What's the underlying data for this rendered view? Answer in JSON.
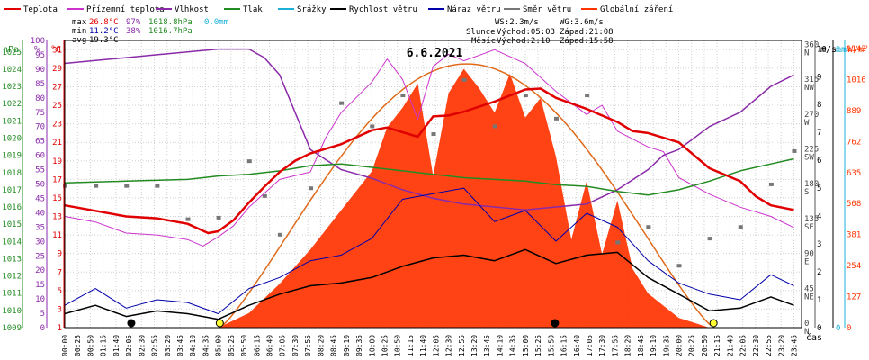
{
  "legend": [
    {
      "label": "Teplota",
      "color": "#e00000"
    },
    {
      "label": "Přízemní teplota",
      "color": "#cc33cc"
    },
    {
      "label": "Vlhkost",
      "color": "#8a2aa8"
    },
    {
      "label": "Tlak",
      "color": "#228b22"
    },
    {
      "label": "Srážky",
      "color": "#1ab0d8"
    },
    {
      "label": "Rychlost větru",
      "color": "#000000"
    },
    {
      "label": "Náraz větru",
      "color": "#0000aa"
    },
    {
      "label": "Směr větru",
      "color": "#777777"
    },
    {
      "label": "Globální záření",
      "color": "#ff3300"
    }
  ],
  "stats": {
    "max": {
      "label": "max",
      "temp": "26.8°C",
      "hum": "97%",
      "press": "1018.8hPa",
      "rain": "0.0mm"
    },
    "min": {
      "label": "min",
      "temp": "11.2°C",
      "hum": "38%",
      "press": "1016.7hPa"
    },
    "avg": {
      "label": "avg",
      "temp": "19.3°C"
    }
  },
  "wind_info": {
    "ws": "WS:2.3m/s",
    "wg": "WG:3.6m/s"
  },
  "sun_moon": {
    "sun_label": "Slunce",
    "sun_rise": "Východ:05:03",
    "sun_set": "Západ:21:08",
    "moon_label": "Měsíc",
    "moon_rise": "Východ:2:10",
    "moon_set": "Západ:15:58"
  },
  "axis_units": {
    "hpa": "hPa",
    "pct": "%",
    "degc": "°C",
    "ms": "m/s",
    "mm": "mm",
    "wm2": "W/m²",
    "time": "čas"
  },
  "colors": {
    "temp": "#e00000",
    "ground": "#cc33cc",
    "hum": "#8a2aa8",
    "press": "#228b22",
    "rain": "#1ab0d8",
    "wind": "#000000",
    "gust": "#0000aa",
    "dir": "#777777",
    "rad": "#ff3300",
    "rad_curve": "#e06a1a",
    "grid": "#d0d0d0"
  },
  "chart_data": {
    "type": "line",
    "title": "6.6.2021",
    "xlabel": "čas",
    "x_ticks": [
      "00:00",
      "00:25",
      "00:50",
      "01:15",
      "01:40",
      "02:05",
      "02:30",
      "02:55",
      "03:20",
      "03:45",
      "04:10",
      "04:35",
      "05:00",
      "05:25",
      "05:50",
      "06:15",
      "06:40",
      "07:05",
      "07:30",
      "07:55",
      "08:20",
      "08:45",
      "09:10",
      "09:35",
      "10:00",
      "10:25",
      "10:50",
      "11:15",
      "11:40",
      "12:05",
      "12:30",
      "12:55",
      "13:20",
      "13:45",
      "14:10",
      "14:35",
      "15:00",
      "15:25",
      "15:50",
      "16:15",
      "16:40",
      "17:05",
      "17:30",
      "17:55",
      "18:20",
      "18:45",
      "19:10",
      "19:35",
      "20:00",
      "20:25",
      "20:50",
      "21:15",
      "21:40",
      "22:05",
      "22:30",
      "22:55",
      "23:20",
      "23:45"
    ],
    "axes": {
      "pressure_hpa": {
        "range": [
          1009,
          1025.67
        ],
        "ticks": [
          1009,
          1010,
          1011,
          1012,
          1013,
          1014,
          1015,
          1016,
          1017,
          1018,
          1019,
          1020,
          1021,
          1022,
          1023,
          1024,
          1025
        ]
      },
      "humidity_pct": {
        "range": [
          0,
          100
        ],
        "ticks": [
          0,
          5,
          10,
          15,
          20,
          25,
          30,
          35,
          40,
          45,
          50,
          55,
          60,
          65,
          70,
          75,
          80,
          85,
          90,
          95,
          100
        ]
      },
      "temperature_c": {
        "range": [
          1,
          32
        ],
        "ticks": [
          1,
          3,
          5,
          7,
          9,
          11,
          13,
          15,
          17,
          19,
          21,
          23,
          25,
          27,
          29,
          31
        ]
      },
      "wind_direction": {
        "range": [
          0,
          371
        ],
        "ticks": [
          0,
          45,
          90,
          135,
          180,
          225,
          270,
          315,
          360
        ],
        "labels": [
          "N",
          "NE",
          "E",
          "SE",
          "S",
          "SW",
          "W",
          "NW",
          "N"
        ]
      },
      "wind_ms": {
        "range": [
          0,
          10.3
        ],
        "ticks": [
          0,
          1,
          2,
          3,
          4,
          5,
          6,
          7,
          8,
          9,
          10
        ]
      },
      "rain_mm": {
        "range": [
          0,
          1.03
        ],
        "ticks": [
          0,
          1
        ]
      },
      "radiation_wm2": {
        "range": [
          0,
          1176
        ],
        "ticks": [
          0,
          127,
          254,
          381,
          508,
          635,
          762,
          889,
          1016,
          1143
        ]
      }
    },
    "series": [
      {
        "name": "Teplota",
        "unit": "°C",
        "x": [
          "00:00",
          "01:00",
          "02:00",
          "03:00",
          "04:00",
          "04:40",
          "05:00",
          "05:30",
          "06:00",
          "06:30",
          "07:00",
          "07:30",
          "08:00",
          "09:00",
          "10:00",
          "10:30",
          "11:00",
          "11:30",
          "12:00",
          "12:30",
          "13:00",
          "14:00",
          "15:00",
          "15:30",
          "16:00",
          "17:00",
          "18:00",
          "18:30",
          "19:00",
          "20:00",
          "21:00",
          "22:00",
          "22:30",
          "23:00",
          "23:45"
        ],
        "y": [
          14.2,
          13.6,
          13.0,
          12.8,
          12.2,
          11.2,
          11.4,
          12.6,
          14.5,
          16.2,
          17.8,
          19.0,
          19.8,
          20.8,
          22.3,
          22.6,
          22.1,
          21.6,
          23.8,
          23.9,
          24.3,
          25.4,
          26.7,
          26.8,
          25.8,
          24.6,
          23.2,
          22.2,
          22.0,
          21.0,
          18.2,
          16.8,
          15.2,
          14.2,
          13.7
        ]
      },
      {
        "name": "Přízemní teplota",
        "unit": "°C",
        "x": [
          "00:00",
          "01:00",
          "02:00",
          "03:00",
          "04:00",
          "04:30",
          "05:00",
          "05:30",
          "06:00",
          "07:00",
          "08:00",
          "08:30",
          "09:00",
          "10:00",
          "10:30",
          "11:00",
          "11:30",
          "12:00",
          "12:30",
          "13:00",
          "14:00",
          "15:00",
          "16:00",
          "17:00",
          "17:30",
          "18:00",
          "19:00",
          "19:30",
          "20:00",
          "21:00",
          "22:00",
          "23:00",
          "23:45"
        ],
        "y": [
          13.0,
          12.4,
          11.2,
          11.0,
          10.5,
          9.8,
          10.8,
          12.0,
          14.0,
          17.0,
          17.8,
          21.5,
          24.2,
          27.5,
          30.0,
          27.8,
          23.5,
          29.2,
          30.5,
          29.8,
          31.0,
          29.5,
          26.5,
          24.0,
          25.0,
          22.2,
          20.5,
          20.0,
          17.2,
          15.4,
          14.0,
          13.0,
          11.8
        ]
      },
      {
        "name": "Vlhkost",
        "unit": "%",
        "x": [
          "00:00",
          "01:00",
          "02:00",
          "03:00",
          "04:00",
          "05:00",
          "05:30",
          "06:00",
          "06:30",
          "07:00",
          "08:00",
          "09:00",
          "10:00",
          "11:00",
          "12:00",
          "13:00",
          "14:00",
          "15:00",
          "16:00",
          "17:00",
          "18:00",
          "19:00",
          "19:30",
          "20:00",
          "21:00",
          "22:00",
          "23:00",
          "23:45"
        ],
        "y": [
          92,
          93,
          94,
          95,
          96,
          97,
          97,
          97,
          94,
          88,
          62,
          55,
          52,
          48,
          45,
          43,
          42,
          41,
          42,
          43,
          48,
          55,
          60,
          62,
          70,
          75,
          84,
          88
        ]
      },
      {
        "name": "Tlak",
        "unit": "hPa",
        "x": [
          "00:00",
          "02:00",
          "04:00",
          "05:00",
          "06:00",
          "07:00",
          "08:00",
          "09:00",
          "10:00",
          "11:00",
          "12:00",
          "13:00",
          "14:00",
          "15:00",
          "16:00",
          "17:00",
          "18:00",
          "19:00",
          "20:00",
          "21:00",
          "22:00",
          "23:00",
          "23:45"
        ],
        "y": [
          1017.4,
          1017.5,
          1017.6,
          1017.8,
          1017.9,
          1018.1,
          1018.4,
          1018.5,
          1018.3,
          1018.1,
          1017.9,
          1017.7,
          1017.6,
          1017.5,
          1017.3,
          1017.2,
          1016.9,
          1016.7,
          1017.0,
          1017.5,
          1018.1,
          1018.5,
          1018.8
        ]
      },
      {
        "name": "Srážky",
        "unit": "mm",
        "x": [
          "00:00",
          "23:45"
        ],
        "y": [
          0.0,
          0.0
        ]
      },
      {
        "name": "Rychlost větru",
        "unit": "m/s",
        "x": [
          "00:00",
          "01:00",
          "02:00",
          "03:00",
          "04:00",
          "05:00",
          "06:00",
          "07:00",
          "08:00",
          "09:00",
          "10:00",
          "11:00",
          "12:00",
          "13:00",
          "14:00",
          "15:00",
          "16:00",
          "17:00",
          "18:00",
          "19:00",
          "20:00",
          "21:00",
          "22:00",
          "23:00",
          "23:45"
        ],
        "y": [
          0.5,
          0.8,
          0.4,
          0.6,
          0.5,
          0.3,
          0.8,
          1.2,
          1.5,
          1.6,
          1.8,
          2.2,
          2.5,
          2.6,
          2.4,
          2.8,
          2.3,
          2.6,
          2.7,
          1.8,
          1.2,
          0.6,
          0.7,
          1.1,
          0.8
        ]
      },
      {
        "name": "Náraz větru",
        "unit": "m/s",
        "x": [
          "00:00",
          "01:00",
          "02:00",
          "03:00",
          "04:00",
          "05:00",
          "06:00",
          "07:00",
          "08:00",
          "09:00",
          "10:00",
          "11:00",
          "12:00",
          "13:00",
          "14:00",
          "15:00",
          "16:00",
          "17:00",
          "18:00",
          "19:00",
          "20:00",
          "21:00",
          "22:00",
          "23:00",
          "23:45"
        ],
        "y": [
          0.8,
          1.4,
          0.7,
          1.0,
          0.9,
          0.5,
          1.4,
          1.8,
          2.4,
          2.6,
          3.2,
          4.6,
          4.8,
          5.0,
          3.8,
          4.2,
          3.1,
          4.1,
          3.6,
          2.4,
          1.6,
          1.2,
          1.0,
          1.9,
          1.5
        ]
      },
      {
        "name": "Směr větru",
        "unit": "°",
        "x": [
          "00:00",
          "01:00",
          "02:00",
          "03:00",
          "04:00",
          "05:00",
          "06:00",
          "06:30",
          "07:00",
          "08:00",
          "09:00",
          "10:00",
          "11:00",
          "12:00",
          "13:00",
          "14:00",
          "15:00",
          "16:00",
          "17:00",
          "18:00",
          "19:00",
          "20:00",
          "21:00",
          "22:00",
          "23:00",
          "23:45"
        ],
        "y": [
          183,
          183,
          183,
          183,
          140,
          142,
          215,
          170,
          120,
          180,
          290,
          260,
          300,
          250,
          320,
          260,
          300,
          270,
          300,
          110,
          130,
          80,
          115,
          130,
          185,
          228
        ]
      },
      {
        "name": "Globální záření",
        "unit": "W/m²",
        "x": [
          "05:00",
          "06:00",
          "07:00",
          "08:00",
          "09:00",
          "10:00",
          "10:30",
          "11:00",
          "11:30",
          "12:00",
          "12:30",
          "13:00",
          "13:30",
          "14:00",
          "14:30",
          "15:00",
          "15:30",
          "16:00",
          "16:30",
          "17:00",
          "17:30",
          "18:00",
          "18:30",
          "19:00",
          "20:00",
          "21:00"
        ],
        "y": [
          0,
          60,
          180,
          320,
          480,
          640,
          820,
          900,
          1000,
          620,
          960,
          1060,
          980,
          880,
          1040,
          860,
          940,
          700,
          360,
          600,
          300,
          520,
          240,
          140,
          40,
          0
        ]
      }
    ]
  }
}
